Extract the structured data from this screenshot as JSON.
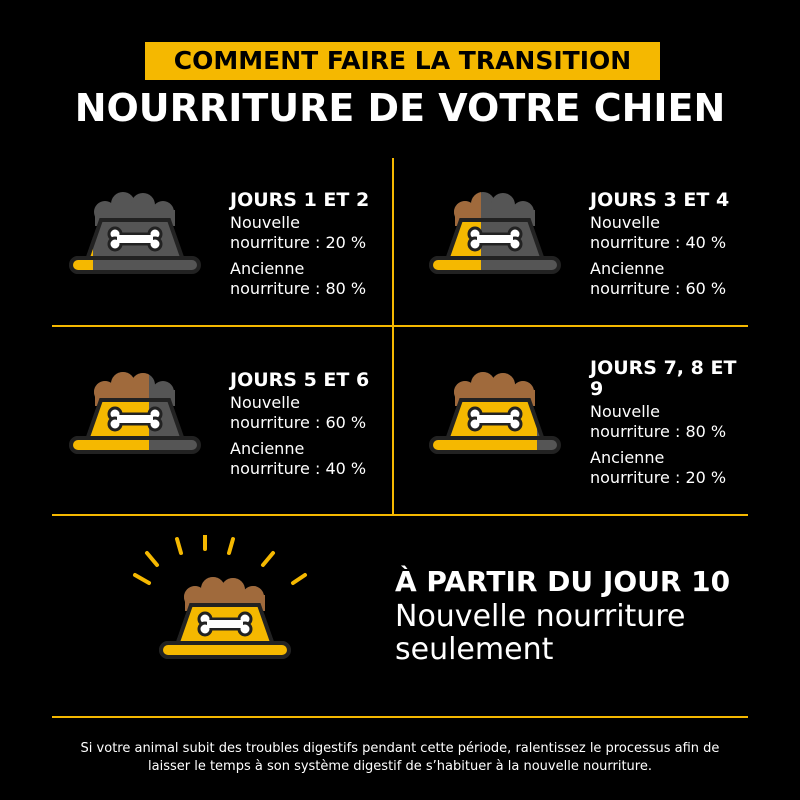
{
  "header": {
    "kicker": "COMMENT FAIRE LA TRANSITION",
    "title": "NOURRITURE DE VOTRE CHIEN"
  },
  "panels": [
    {
      "title": "JOURS 1 ET 2",
      "new": "Nouvelle nourriture : 20 %",
      "old": "Ancienne nourriture : 80 %"
    },
    {
      "title": "JOURS 3 ET 4",
      "new": "Nouvelle nourriture : 40 %",
      "old": "Ancienne nourriture : 60 %"
    },
    {
      "title": "JOURS 5 ET 6",
      "new": "Nouvelle nourriture : 60 %",
      "old": "Ancienne nourriture : 40 %"
    },
    {
      "title": "JOURS 7, 8 ET 9",
      "new": "Nouvelle nourriture : 80 %",
      "old": "Ancienne nourriture : 20 %"
    }
  ],
  "final": {
    "title": "À PARTIR DU JOUR 10",
    "text": "Nouvelle nourriture seulement"
  },
  "footer": "Si votre animal subit des troubles digestifs pendant cette période, ralentissez le processus afin de laisser le temps à son système digestif de s’habituer à la nouvelle nourriture."
}
